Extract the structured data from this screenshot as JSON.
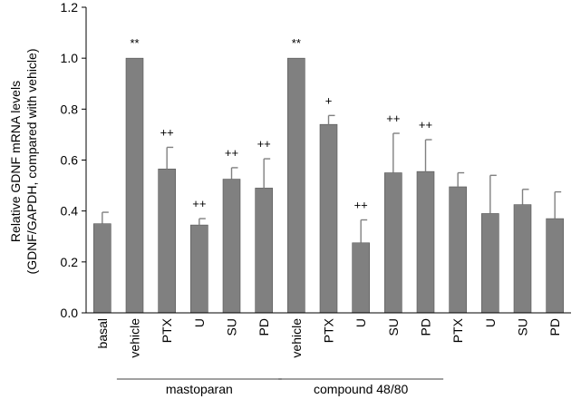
{
  "chart_data": {
    "type": "bar",
    "ylabel_lines": [
      "Relative GDNF mRNA levels",
      "(GDNF/GAPDH, compared with vehicle)"
    ],
    "ylim": [
      0,
      1.2
    ],
    "yticks": [
      "0.0",
      "0.2",
      "0.4",
      "0.6",
      "0.8",
      "1.0",
      "1.2"
    ],
    "categories": [
      "basal",
      "vehicle",
      "PTX",
      "U",
      "SU",
      "PD",
      "vehicle",
      "PTX",
      "U",
      "SU",
      "PD",
      "PTX",
      "U",
      "SU",
      "PD"
    ],
    "values": [
      0.35,
      1.0,
      0.565,
      0.345,
      0.525,
      0.49,
      1.0,
      0.74,
      0.275,
      0.55,
      0.555,
      0.495,
      0.39,
      0.425,
      0.37
    ],
    "errors": [
      0.045,
      0.0,
      0.085,
      0.025,
      0.045,
      0.115,
      0.0,
      0.035,
      0.09,
      0.155,
      0.125,
      0.055,
      0.15,
      0.06,
      0.105
    ],
    "significance": [
      "",
      "**",
      "++",
      "++",
      "++",
      "++",
      "**",
      "+",
      "++",
      "++",
      "++",
      "",
      "",
      "",
      ""
    ],
    "groups": [
      {
        "label": "mastoparan",
        "start": 1,
        "end": 5
      },
      {
        "label": "compound 48/80",
        "start": 6,
        "end": 10
      }
    ],
    "bar_color": "#808080",
    "grid": false
  }
}
